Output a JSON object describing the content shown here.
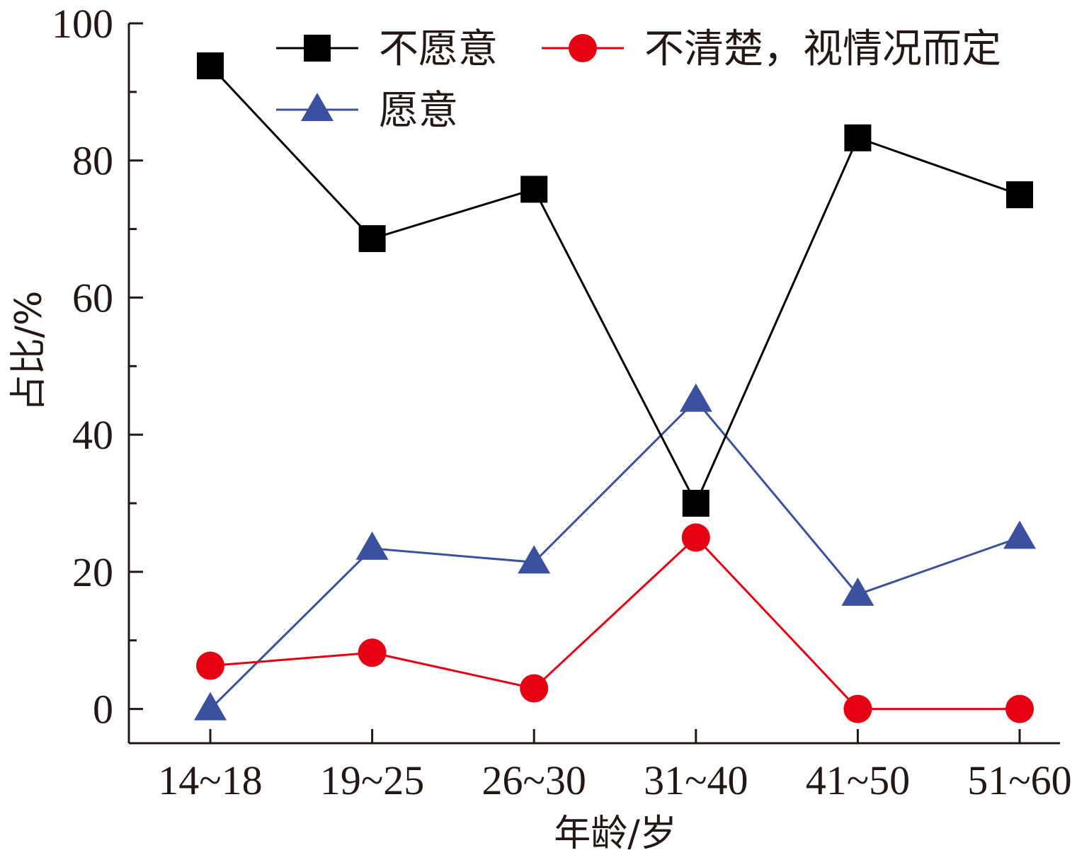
{
  "chart_data": {
    "type": "line",
    "title": "",
    "xlabel": "年龄/岁",
    "ylabel": "占比/%",
    "categories": [
      "14~18",
      "19~25",
      "26~30",
      "31~40",
      "41~50",
      "51~60"
    ],
    "ylim": [
      -5,
      100
    ],
    "yticks": [
      "0",
      "20",
      "40",
      "60",
      "80",
      "100"
    ],
    "grid": false,
    "legend_position": "top",
    "series": [
      {
        "name": "不愿意",
        "color": "#000000",
        "marker": "square",
        "values": [
          93.8,
          68.6,
          75.8,
          30.0,
          83.3,
          75.0
        ]
      },
      {
        "name": "不清楚，视情况而定",
        "color": "#e60012",
        "marker": "circle",
        "values": [
          6.3,
          8.2,
          3.0,
          25.0,
          0.0,
          0.0
        ]
      },
      {
        "name": "愿意",
        "color": "#3c50a0",
        "marker": "triangle",
        "values": [
          0.0,
          23.4,
          21.4,
          45.0,
          16.7,
          25.0
        ]
      }
    ]
  }
}
